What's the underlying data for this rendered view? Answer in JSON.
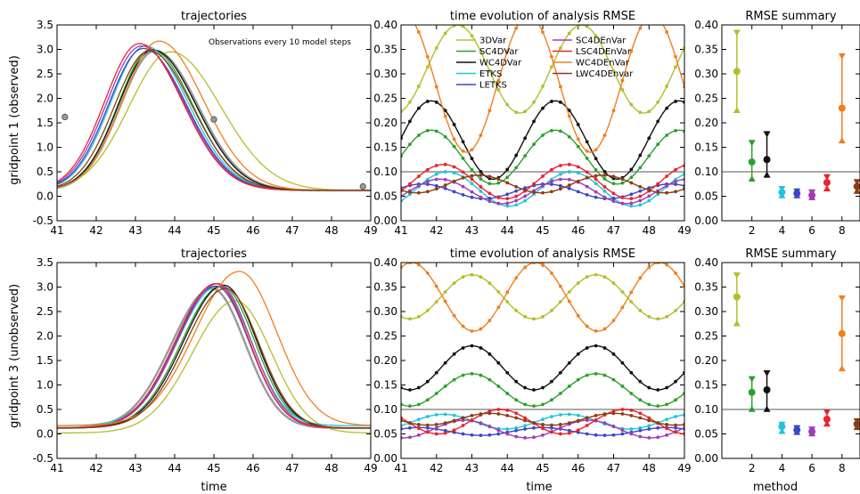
{
  "figure": {
    "row_labels": [
      "gridpoint 1 (observed)",
      "gridpoint 3 (unobserved)"
    ],
    "col_xlabels": [
      "time",
      "time",
      "method"
    ]
  },
  "colors": {
    "3DVar": "#b5bd2e",
    "SC4DVar": "#2ca02c",
    "WC4DVar": "#111111",
    "ETKS": "#22c5d8",
    "LETKS": "#3a47c2",
    "SC4DEnVar": "#a23bb5",
    "LSC4DEnVar": "#e8242e",
    "WC4DEnVar": "#f07f1e",
    "LWC4DEnvar": "#8b3e14",
    "truth": "#999999",
    "reference": "#aaaaaa"
  },
  "legend": {
    "col1": [
      "3DVar",
      "SC4DVar",
      "WC4DVar",
      "ETKS",
      "LETKS"
    ],
    "col2": [
      "SC4DEnVar",
      "LSC4DEnVar",
      "WC4DEnVar",
      "LWC4DEnvar"
    ]
  },
  "chart_data": [
    {
      "id": "traj1",
      "type": "line",
      "title": "trajectories",
      "xlabel": "",
      "ylabel": "gridpoint 1 (observed)",
      "xlim": [
        41,
        49
      ],
      "ylim": [
        -0.5,
        3.5
      ],
      "xticks": [
        41,
        42,
        43,
        44,
        45,
        46,
        47,
        48,
        49
      ],
      "yticks": [
        -0.5,
        0.0,
        0.5,
        1.0,
        1.5,
        2.0,
        2.5,
        3.0,
        3.5
      ],
      "annotation": "Observations every 10 model steps",
      "observations": [
        {
          "x": 41.2,
          "y": 1.62
        },
        {
          "x": 45.0,
          "y": 1.57
        },
        {
          "x": 48.8,
          "y": 0.2
        }
      ],
      "model": {
        "base": 0.12,
        "amp": 2.85,
        "center": 43.3,
        "width_left": 1.25,
        "width_right": 1.55
      },
      "series": [
        {
          "name": "truth",
          "dc": 0.2,
          "da": 0.0,
          "dw": 0.0,
          "dy": 0.0
        },
        {
          "name": "3DVar",
          "dc": 0.6,
          "da": -0.02,
          "dw": 0.25,
          "dy": 0.0
        },
        {
          "name": "SC4DVar",
          "dc": 0.1,
          "da": 0.03,
          "dw": -0.05,
          "dy": 0.0
        },
        {
          "name": "WC4DVar",
          "dc": 0.15,
          "da": 0.02,
          "dw": 0.0,
          "dy": 0.0
        },
        {
          "name": "ETKS",
          "dc": -0.05,
          "da": 0.1,
          "dw": 0.0,
          "dy": 0.0
        },
        {
          "name": "LETKS",
          "dc": -0.1,
          "da": 0.05,
          "dw": 0.0,
          "dy": 0.0
        },
        {
          "name": "SC4DEnVar",
          "dc": -0.15,
          "da": 0.1,
          "dw": 0.0,
          "dy": 0.0
        },
        {
          "name": "LSC4DEnVar",
          "dc": -0.2,
          "da": 0.15,
          "dw": 0.0,
          "dy": 0.0
        },
        {
          "name": "WC4DEnVar",
          "dc": 0.3,
          "da": 0.2,
          "dw": 0.05,
          "dy": 0.0
        },
        {
          "name": "LWC4DEnvar",
          "dc": 0.05,
          "da": 0.0,
          "dw": 0.0,
          "dy": 0.0
        }
      ]
    },
    {
      "id": "rmse1",
      "type": "line",
      "title": "time evolution of analysis RMSE",
      "xlabel": "",
      "ylabel": "",
      "xlim": [
        41,
        49
      ],
      "ylim": [
        0.0,
        0.4
      ],
      "xticks": [
        41,
        42,
        43,
        44,
        45,
        46,
        47,
        48,
        49
      ],
      "yticks": [
        0.0,
        0.05,
        0.1,
        0.15,
        0.2,
        0.25,
        0.3,
        0.35,
        0.4
      ],
      "reference_line": 0.1,
      "series": [
        {
          "name": "3DVar",
          "mean": 0.31,
          "amp": 0.09,
          "period": 3.5,
          "phase": 1.6
        },
        {
          "name": "SC4DVar",
          "mean": 0.13,
          "amp": 0.055,
          "period": 3.5,
          "phase": 0.85
        },
        {
          "name": "WC4DVar",
          "mean": 0.165,
          "amp": 0.08,
          "period": 3.5,
          "phase": 0.85
        },
        {
          "name": "ETKS",
          "mean": 0.065,
          "amp": 0.035,
          "period": 3.5,
          "phase": 1.3
        },
        {
          "name": "LETKS",
          "mean": 0.06,
          "amp": 0.015,
          "period": 3.5,
          "phase": 0.6
        },
        {
          "name": "SC4DEnVar",
          "mean": 0.06,
          "amp": 0.025,
          "period": 3.5,
          "phase": 1.1
        },
        {
          "name": "LSC4DEnVar",
          "mean": 0.08,
          "amp": 0.035,
          "period": 3.5,
          "phase": 1.2
        },
        {
          "name": "WC4DEnVar",
          "mean": 0.28,
          "amp": 0.14,
          "period": 3.5,
          "phase": 0.1
        },
        {
          "name": "LWC4DEnvar",
          "mean": 0.075,
          "amp": 0.018,
          "period": 3.5,
          "phase": 2.2
        }
      ]
    },
    {
      "id": "sum1",
      "type": "scatter",
      "title": "RMSE summary",
      "xlabel": "",
      "ylabel": "",
      "xlim": [
        0,
        9.2
      ],
      "ylim": [
        0.0,
        0.4
      ],
      "xticks": [
        2,
        4,
        6,
        8
      ],
      "yticks": [
        0.0,
        0.05,
        0.1,
        0.15,
        0.2,
        0.25,
        0.3,
        0.35,
        0.4
      ],
      "reference_line": 0.1,
      "points": [
        {
          "method": 1,
          "name": "3DVar",
          "mean": 0.305,
          "min": 0.22,
          "max": 0.39
        },
        {
          "method": 2,
          "name": "SC4DVar",
          "mean": 0.12,
          "min": 0.08,
          "max": 0.165
        },
        {
          "method": 3,
          "name": "WC4DVar",
          "mean": 0.125,
          "min": 0.088,
          "max": 0.183
        },
        {
          "method": 4,
          "name": "ETKS",
          "mean": 0.058,
          "min": 0.046,
          "max": 0.071
        },
        {
          "method": 5,
          "name": "LETKS",
          "mean": 0.056,
          "min": 0.046,
          "max": 0.066
        },
        {
          "method": 6,
          "name": "SC4DEnVar",
          "mean": 0.052,
          "min": 0.042,
          "max": 0.064
        },
        {
          "method": 7,
          "name": "LSC4DEnVar",
          "mean": 0.078,
          "min": 0.06,
          "max": 0.095
        },
        {
          "method": 8,
          "name": "WC4DEnVar",
          "mean": 0.23,
          "min": 0.158,
          "max": 0.342
        },
        {
          "method": 9,
          "name": "LWC4DEnvar",
          "mean": 0.07,
          "min": 0.055,
          "max": 0.085
        }
      ]
    },
    {
      "id": "traj3",
      "type": "line",
      "title": "trajectories",
      "xlabel": "time",
      "ylabel": "gridpoint 3 (unobserved)",
      "xlim": [
        41,
        49
      ],
      "ylim": [
        -0.5,
        3.5
      ],
      "xticks": [
        41,
        42,
        43,
        44,
        45,
        46,
        47,
        48,
        49
      ],
      "yticks": [
        -0.5,
        0.0,
        0.5,
        1.0,
        1.5,
        2.0,
        2.5,
        3.0,
        3.5
      ],
      "annotation": "",
      "observations": [],
      "model": {
        "base": 0.12,
        "amp": 2.85,
        "center": 45.1,
        "width_left": 1.45,
        "width_right": 1.2
      },
      "series": [
        {
          "name": "truth",
          "dc": -0.15,
          "da": 0.0,
          "dw": 0.0,
          "dy": 0.0
        },
        {
          "name": "3DVar",
          "dc": 0.45,
          "da": -0.15,
          "dw": 0.1,
          "dy": -0.1
        },
        {
          "name": "SC4DVar",
          "dc": 0.1,
          "da": 0.05,
          "dw": 0.0,
          "dy": 0.0
        },
        {
          "name": "WC4DVar",
          "dc": 0.15,
          "da": 0.07,
          "dw": 0.0,
          "dy": 0.0
        },
        {
          "name": "ETKS",
          "dc": 0.0,
          "da": 0.0,
          "dw": 0.0,
          "dy": 0.05
        },
        {
          "name": "LETKS",
          "dc": -0.05,
          "da": 0.05,
          "dw": 0.0,
          "dy": 0.0
        },
        {
          "name": "SC4DEnVar",
          "dc": 0.0,
          "da": 0.1,
          "dw": 0.0,
          "dy": 0.0
        },
        {
          "name": "LSC4DEnVar",
          "dc": -0.05,
          "da": 0.1,
          "dw": 0.0,
          "dy": 0.0
        },
        {
          "name": "WC4DEnVar",
          "dc": 0.55,
          "da": 0.3,
          "dw": 0.15,
          "dy": 0.05
        },
        {
          "name": "LWC4DEnvar",
          "dc": 0.2,
          "da": 0.0,
          "dw": 0.0,
          "dy": 0.0
        }
      ]
    },
    {
      "id": "rmse3",
      "type": "line",
      "title": "time evolution of analysis RMSE",
      "xlabel": "time",
      "ylabel": "",
      "xlim": [
        41,
        49
      ],
      "ylim": [
        0.0,
        0.4
      ],
      "xticks": [
        41,
        42,
        43,
        44,
        45,
        46,
        47,
        48,
        49
      ],
      "yticks": [
        0.0,
        0.05,
        0.1,
        0.15,
        0.2,
        0.25,
        0.3,
        0.35,
        0.4
      ],
      "reference_line": 0.1,
      "series": [
        {
          "name": "3DVar",
          "mean": 0.33,
          "amp": 0.045,
          "period": 3.5,
          "phase": 2.0
        },
        {
          "name": "SC4DVar",
          "mean": 0.14,
          "amp": 0.033,
          "period": 3.5,
          "phase": 2.0
        },
        {
          "name": "WC4DVar",
          "mean": 0.185,
          "amp": 0.045,
          "period": 3.5,
          "phase": 2.0
        },
        {
          "name": "ETKS",
          "mean": 0.075,
          "amp": 0.015,
          "period": 3.5,
          "phase": 1.2
        },
        {
          "name": "LETKS",
          "mean": 0.055,
          "amp": 0.008,
          "period": 3.5,
          "phase": 0.5
        },
        {
          "name": "SC4DEnVar",
          "mean": 0.06,
          "amp": 0.018,
          "period": 3.5,
          "phase": 1.8
        },
        {
          "name": "LSC4DEnVar",
          "mean": 0.075,
          "amp": 0.025,
          "period": 3.5,
          "phase": 2.8
        },
        {
          "name": "WC4DEnVar",
          "mean": 0.33,
          "amp": 0.07,
          "period": 3.5,
          "phase": 0.3
        },
        {
          "name": "LWC4DEnvar",
          "mean": 0.08,
          "amp": 0.012,
          "period": 3.5,
          "phase": 2.5
        }
      ]
    },
    {
      "id": "sum3",
      "type": "scatter",
      "title": "RMSE summary",
      "xlabel": "method",
      "ylabel": "",
      "xlim": [
        0,
        9.2
      ],
      "ylim": [
        0.0,
        0.4
      ],
      "xticks": [
        2,
        4,
        6,
        8
      ],
      "yticks": [
        0.0,
        0.05,
        0.1,
        0.15,
        0.2,
        0.25,
        0.3,
        0.35,
        0.4
      ],
      "reference_line": 0.1,
      "points": [
        {
          "method": 1,
          "name": "3DVar",
          "mean": 0.33,
          "min": 0.27,
          "max": 0.38
        },
        {
          "method": 2,
          "name": "SC4DVar",
          "mean": 0.135,
          "min": 0.095,
          "max": 0.168
        },
        {
          "method": 3,
          "name": "WC4DVar",
          "mean": 0.14,
          "min": 0.095,
          "max": 0.18
        },
        {
          "method": 4,
          "name": "ETKS",
          "mean": 0.065,
          "min": 0.05,
          "max": 0.075
        },
        {
          "method": 5,
          "name": "LETKS",
          "mean": 0.058,
          "min": 0.048,
          "max": 0.068
        },
        {
          "method": 6,
          "name": "SC4DEnVar",
          "mean": 0.055,
          "min": 0.045,
          "max": 0.065
        },
        {
          "method": 7,
          "name": "LSC4DEnVar",
          "mean": 0.08,
          "min": 0.065,
          "max": 0.1
        },
        {
          "method": 8,
          "name": "WC4DEnVar",
          "mean": 0.255,
          "min": 0.178,
          "max": 0.333
        },
        {
          "method": 9,
          "name": "LWC4DEnvar",
          "mean": 0.07,
          "min": 0.058,
          "max": 0.082
        }
      ]
    }
  ]
}
